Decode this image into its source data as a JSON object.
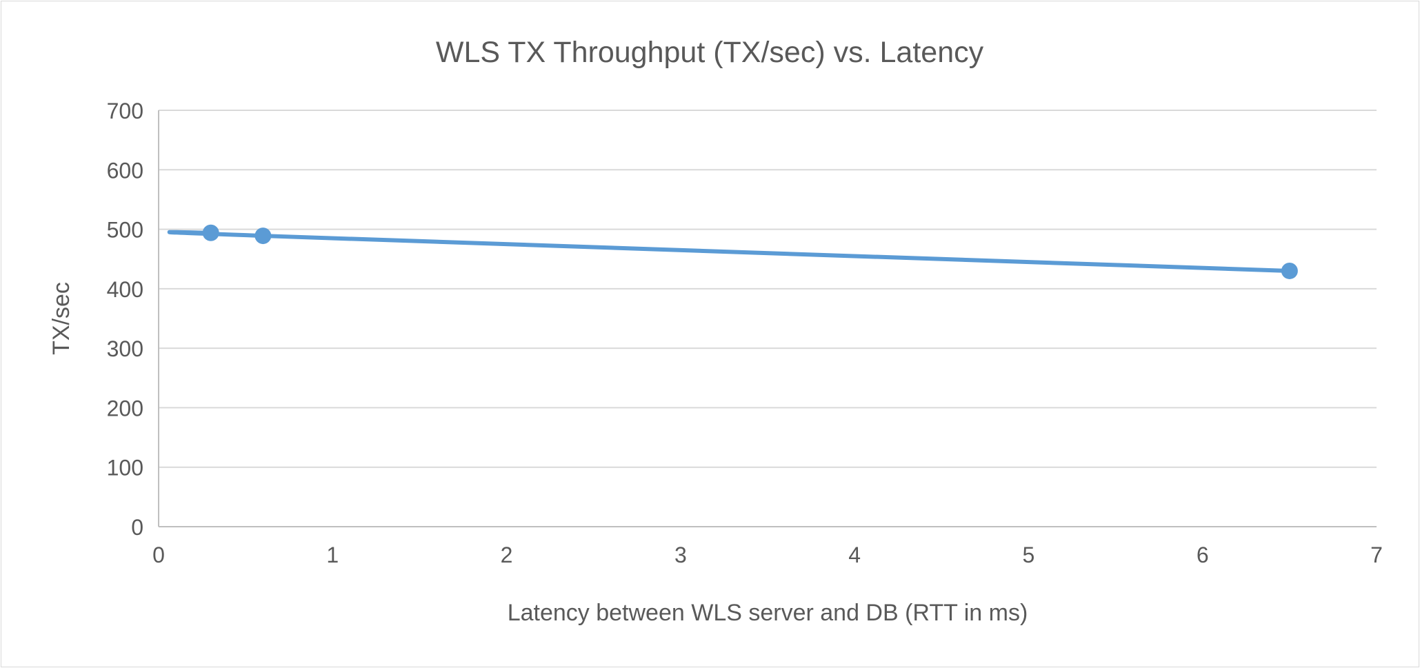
{
  "chart_data": {
    "type": "line",
    "title": "WLS TX Throughput (TX/sec) vs. Latency",
    "xlabel": "Latency between WLS server and DB (RTT in ms)",
    "ylabel": "TX/sec",
    "xlim": [
      0,
      7
    ],
    "ylim": [
      0,
      700
    ],
    "xticks": [
      "0",
      "1",
      "2",
      "3",
      "4",
      "5",
      "6",
      "7"
    ],
    "yticks": [
      "0",
      "100",
      "200",
      "300",
      "400",
      "500",
      "600",
      "700"
    ],
    "grid": "horizontal",
    "smooth": true,
    "series": [
      {
        "x": [
          0.3,
          0.6,
          6.5
        ],
        "y": [
          494,
          489,
          430
        ],
        "color": "#5b9bd5"
      }
    ]
  }
}
